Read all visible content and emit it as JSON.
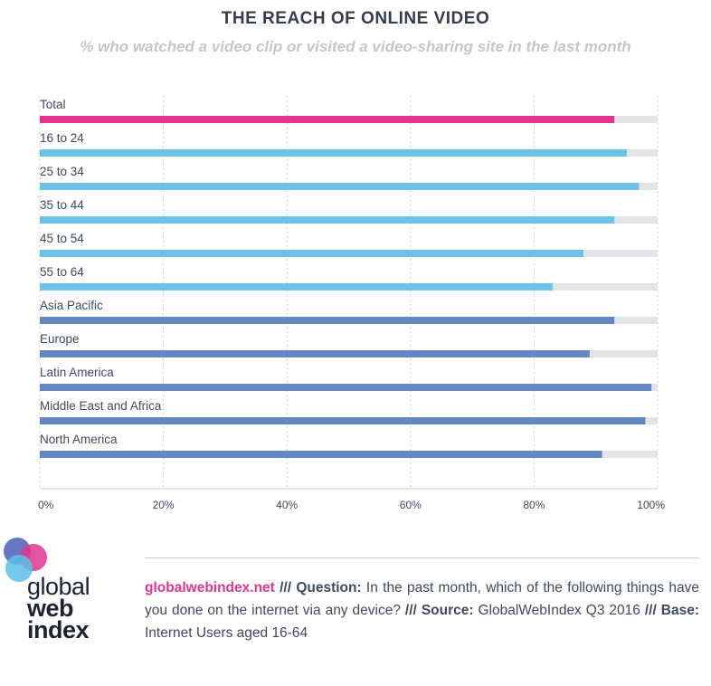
{
  "chart_data": {
    "type": "bar",
    "orientation": "horizontal",
    "title": "THE REACH OF ONLINE VIDEO",
    "subtitle": "% who watched a video clip or visited a video-sharing site in the last month",
    "categories": [
      "Total",
      "16 to 24",
      "25 to 34",
      "35 to 44",
      "45 to 54",
      "55 to 64",
      "Asia Pacific",
      "Europe",
      "Latin America",
      "Middle East and Africa",
      "North America"
    ],
    "values": [
      93,
      95,
      97,
      93,
      88,
      83,
      93,
      89,
      99,
      98,
      91
    ],
    "xlim": [
      0,
      100
    ],
    "x_ticks": [
      "0%",
      "20%",
      "40%",
      "60%",
      "80%",
      "100%"
    ],
    "grid": true,
    "colors": {
      "total": "#e0368f",
      "age": "#6cc1e8",
      "region": "#6486c3",
      "track": "#e3e4e7",
      "grid": "#c8ccd2"
    },
    "bar_groups": [
      "total",
      "age",
      "age",
      "age",
      "age",
      "age",
      "region",
      "region",
      "region",
      "region",
      "region"
    ]
  },
  "footer": {
    "site": "globalwebindex.net",
    "sep1": " /// ",
    "question_label": "Question:",
    "question_text": " In the past month, which of the following things have you done on the internet via any device?",
    "sep2": " /// ",
    "source_label": "Source:",
    "source_text": " GlobalWebIndex Q3 2016",
    "sep3": " /// ",
    "base_label": "Base:",
    "base_text": " Internet Users aged 16-64"
  },
  "logo": {
    "line1": "global",
    "line2": "web",
    "line3": "index",
    "colors": [
      "#4a5fb4",
      "#e0368f",
      "#5bc0e8"
    ]
  }
}
